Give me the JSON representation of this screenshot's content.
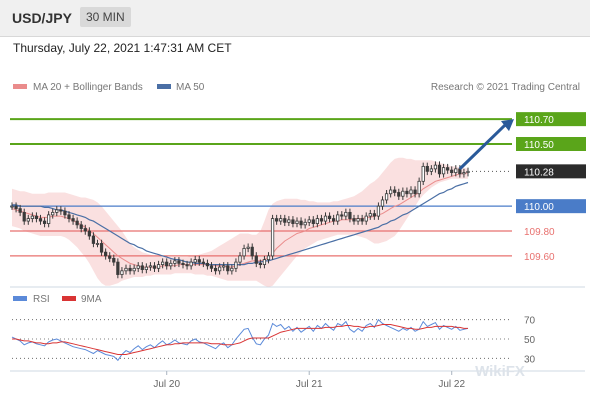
{
  "header": {
    "symbol": "USD/JPY",
    "timeframe": "30 MIN",
    "datetime": "Thursday, July 22, 2021 1:47:31 AM CET"
  },
  "legend": {
    "ma20_bb_label": "MA 20 + Bollinger Bands",
    "ma50_label": "MA 50",
    "copyright": "Research © 2021 Trading Central"
  },
  "rsi_legend": {
    "rsi_label": "RSI",
    "ma9_label": "9MA"
  },
  "watermark": "WikiFX",
  "colors": {
    "resistance": "#5aa51a",
    "support": "#e8716f",
    "pivot": "#4a7cc8",
    "current_tag": "#2b2b2b",
    "arrow": "#2a5a9a",
    "candle": "#3a3a3a",
    "bollinger": "#f6c6c6",
    "ma20": "#ea8c8c",
    "ma50": "#4a6fa5",
    "rsi": "#5b8ad9",
    "rsi_ma": "#d93434"
  },
  "chart_data": [
    {
      "type": "candlestick",
      "instrument": "USD/JPY",
      "timeframe": "30 MIN",
      "ylim": [
        109.39,
        110.87
      ],
      "xlim": [
        0,
        112
      ],
      "x_ticks": [
        {
          "x": 38,
          "label": "Jul 20"
        },
        {
          "x": 73,
          "label": "Jul 21"
        },
        {
          "x": 108,
          "label": "Jul 22"
        }
      ],
      "levels": [
        {
          "value": 110.7,
          "label": "110.70",
          "kind": "resistance"
        },
        {
          "value": 110.5,
          "label": "110.50",
          "kind": "resistance"
        },
        {
          "value": 110.28,
          "label": "110.28",
          "kind": "current"
        },
        {
          "value": 110.0,
          "label": "110.00",
          "kind": "pivot"
        },
        {
          "value": 109.8,
          "label": "109.80",
          "kind": "support"
        },
        {
          "value": 109.6,
          "label": "109.60",
          "kind": "support"
        }
      ],
      "forecast_arrow": {
        "from": [
          110,
          110.3
        ],
        "to": [
          120,
          110.7
        ]
      },
      "close": [
        110.0,
        109.98,
        109.95,
        109.88,
        109.9,
        109.92,
        109.9,
        109.88,
        109.86,
        109.93,
        109.95,
        109.97,
        109.96,
        109.93,
        109.9,
        109.88,
        109.85,
        109.82,
        109.8,
        109.76,
        109.7,
        109.7,
        109.63,
        109.6,
        109.58,
        109.55,
        109.45,
        109.48,
        109.5,
        109.48,
        109.5,
        109.52,
        109.49,
        109.51,
        109.52,
        109.5,
        109.53,
        109.55,
        109.52,
        109.54,
        109.56,
        109.54,
        109.53,
        109.52,
        109.55,
        109.57,
        109.55,
        109.54,
        109.52,
        109.5,
        109.48,
        109.51,
        109.52,
        109.48,
        109.5,
        109.55,
        109.6,
        109.66,
        109.67,
        109.6,
        109.54,
        109.53,
        109.57,
        109.6,
        109.9,
        109.88,
        109.9,
        109.87,
        109.89,
        109.86,
        109.88,
        109.85,
        109.87,
        109.89,
        109.86,
        109.9,
        109.88,
        109.92,
        109.9,
        109.88,
        109.93,
        109.92,
        109.95,
        109.9,
        109.88,
        109.9,
        109.88,
        109.92,
        109.94,
        109.92,
        110.0,
        110.05,
        110.1,
        110.13,
        110.11,
        110.08,
        110.12,
        110.1,
        110.13,
        110.1,
        110.2,
        110.32,
        110.28,
        110.3,
        110.33,
        110.26,
        110.31,
        110.29,
        110.27,
        110.3,
        110.26,
        110.27,
        110.28
      ],
      "ma20": [
        109.98,
        109.97,
        109.96,
        109.95,
        109.94,
        109.93,
        109.92,
        109.91,
        109.91,
        109.91,
        109.92,
        109.92,
        109.92,
        109.91,
        109.9,
        109.88,
        109.87,
        109.85,
        109.83,
        109.8,
        109.78,
        109.75,
        109.72,
        109.69,
        109.66,
        109.63,
        109.6,
        109.58,
        109.56,
        109.54,
        109.53,
        109.52,
        109.51,
        109.51,
        109.51,
        109.51,
        109.51,
        109.52,
        109.52,
        109.52,
        109.52,
        109.53,
        109.53,
        109.53,
        109.53,
        109.53,
        109.53,
        109.53,
        109.53,
        109.53,
        109.52,
        109.52,
        109.52,
        109.51,
        109.51,
        109.52,
        109.53,
        109.54,
        109.55,
        109.56,
        109.56,
        109.56,
        109.57,
        109.59,
        109.62,
        109.66,
        109.69,
        109.72,
        109.74,
        109.76,
        109.78,
        109.79,
        109.8,
        109.82,
        109.83,
        109.84,
        109.85,
        109.86,
        109.87,
        109.88,
        109.88,
        109.89,
        109.89,
        109.89,
        109.9,
        109.9,
        109.9,
        109.91,
        109.91,
        109.92,
        109.93,
        109.94,
        109.96,
        109.98,
        110.0,
        110.01,
        110.03,
        110.05,
        110.07,
        110.09,
        110.11,
        110.14,
        110.16,
        110.18,
        110.2,
        110.21,
        110.22,
        110.23,
        110.24,
        110.25,
        110.26,
        110.26,
        110.27
      ],
      "bollinger_upper": [
        110.14,
        110.13,
        110.12,
        110.12,
        110.11,
        110.1,
        110.1,
        110.1,
        110.1,
        110.11,
        110.11,
        110.11,
        110.11,
        110.11,
        110.1,
        110.09,
        110.08,
        110.07,
        110.07,
        110.06,
        110.05,
        110.03,
        110.0,
        109.96,
        109.92,
        109.88,
        109.84,
        109.8,
        109.75,
        109.7,
        109.67,
        109.65,
        109.63,
        109.62,
        109.61,
        109.6,
        109.6,
        109.59,
        109.59,
        109.59,
        109.59,
        109.59,
        109.59,
        109.59,
        109.6,
        109.6,
        109.61,
        109.62,
        109.63,
        109.64,
        109.66,
        109.68,
        109.7,
        109.72,
        109.74,
        109.76,
        109.78,
        109.78,
        109.78,
        109.77,
        109.77,
        109.8,
        109.88,
        109.97,
        110.02,
        110.04,
        110.05,
        110.06,
        110.06,
        110.06,
        110.06,
        110.05,
        110.05,
        110.04,
        110.04,
        110.03,
        110.03,
        110.03,
        110.03,
        110.04,
        110.04,
        110.05,
        110.06,
        110.07,
        110.08,
        110.1,
        110.12,
        110.15,
        110.18,
        110.2,
        110.23,
        110.27,
        110.31,
        110.35,
        110.38,
        110.39,
        110.39,
        110.38,
        110.38,
        110.37,
        110.37,
        110.37,
        110.37,
        110.37,
        110.36,
        110.35,
        110.34,
        110.33,
        110.32,
        110.32,
        110.31,
        110.31,
        110.3
      ],
      "bollinger_lower": [
        109.84,
        109.83,
        109.82,
        109.8,
        109.79,
        109.78,
        109.77,
        109.76,
        109.76,
        109.76,
        109.76,
        109.76,
        109.76,
        109.75,
        109.73,
        109.7,
        109.67,
        109.63,
        109.59,
        109.54,
        109.48,
        109.42,
        109.38,
        109.36,
        109.36,
        109.37,
        109.38,
        109.4,
        109.41,
        109.42,
        109.43,
        109.43,
        109.43,
        109.44,
        109.44,
        109.45,
        109.45,
        109.45,
        109.45,
        109.45,
        109.46,
        109.46,
        109.46,
        109.46,
        109.46,
        109.45,
        109.45,
        109.45,
        109.44,
        109.44,
        109.43,
        109.42,
        109.41,
        109.4,
        109.4,
        109.4,
        109.4,
        109.4,
        109.4,
        109.4,
        109.4,
        109.38,
        109.36,
        109.35,
        109.36,
        109.4,
        109.44,
        109.48,
        109.52,
        109.56,
        109.6,
        109.63,
        109.66,
        109.68,
        109.7,
        109.72,
        109.73,
        109.74,
        109.75,
        109.76,
        109.77,
        109.77,
        109.77,
        109.77,
        109.77,
        109.76,
        109.75,
        109.74,
        109.72,
        109.7,
        109.7,
        109.71,
        109.72,
        109.74,
        109.76,
        109.8,
        109.85,
        109.9,
        109.95,
        110.0,
        110.05,
        110.09,
        110.12,
        110.15,
        110.17,
        110.19,
        110.2,
        110.21,
        110.22,
        110.22,
        110.22,
        110.22,
        110.22
      ],
      "ma50": [
        110.01,
        110.01,
        110.0,
        110.0,
        110.0,
        110.0,
        110.0,
        110.0,
        109.99,
        109.99,
        109.98,
        109.97,
        109.97,
        109.96,
        109.95,
        109.94,
        109.93,
        109.92,
        109.91,
        109.89,
        109.88,
        109.86,
        109.84,
        109.82,
        109.8,
        109.78,
        109.76,
        109.74,
        109.72,
        109.7,
        109.69,
        109.67,
        109.66,
        109.64,
        109.63,
        109.62,
        109.61,
        109.6,
        109.59,
        109.58,
        109.57,
        109.57,
        109.56,
        109.55,
        109.55,
        109.54,
        109.54,
        109.54,
        109.53,
        109.53,
        109.53,
        109.53,
        109.53,
        109.53,
        109.53,
        109.53,
        109.53,
        109.53,
        109.54,
        109.54,
        109.55,
        109.55,
        109.56,
        109.56,
        109.57,
        109.58,
        109.59,
        109.6,
        109.61,
        109.62,
        109.63,
        109.64,
        109.65,
        109.66,
        109.67,
        109.68,
        109.69,
        109.7,
        109.71,
        109.72,
        109.73,
        109.74,
        109.75,
        109.76,
        109.77,
        109.78,
        109.79,
        109.8,
        109.81,
        109.82,
        109.83,
        109.85,
        109.86,
        109.88,
        109.89,
        109.91,
        109.93,
        109.94,
        109.96,
        109.98,
        110.0,
        110.02,
        110.04,
        110.06,
        110.08,
        110.1,
        110.11,
        110.13,
        110.14,
        110.16,
        110.17,
        110.18,
        110.19
      ]
    },
    {
      "type": "line",
      "name": "RSI panel",
      "ylim": [
        20,
        80
      ],
      "y_ticks": [
        70,
        50,
        30
      ],
      "series": [
        {
          "name": "RSI",
          "values": [
            52,
            50,
            48,
            44,
            46,
            47,
            45,
            44,
            43,
            47,
            49,
            50,
            48,
            46,
            44,
            42,
            41,
            40,
            39,
            37,
            35,
            38,
            36,
            34,
            33,
            32,
            28,
            34,
            38,
            36,
            40,
            43,
            39,
            42,
            44,
            41,
            45,
            48,
            44,
            46,
            49,
            46,
            45,
            44,
            48,
            50,
            47,
            46,
            44,
            42,
            40,
            44,
            46,
            41,
            44,
            50,
            55,
            60,
            61,
            52,
            45,
            44,
            50,
            54,
            66,
            63,
            65,
            60,
            63,
            58,
            62,
            57,
            60,
            63,
            58,
            64,
            61,
            66,
            62,
            59,
            66,
            64,
            68,
            60,
            57,
            61,
            58,
            64,
            66,
            62,
            70,
            66,
            64,
            62,
            60,
            58,
            61,
            59,
            62,
            58,
            60,
            68,
            63,
            65,
            67,
            60,
            64,
            62,
            60,
            63,
            59,
            60,
            61
          ]
        },
        {
          "name": "9MA",
          "values": [
            50,
            50,
            49,
            48,
            48,
            47,
            46,
            46,
            45,
            45,
            46,
            46,
            47,
            47,
            46,
            45,
            44,
            43,
            42,
            41,
            40,
            39,
            38,
            37,
            36,
            35,
            34,
            34,
            34,
            35,
            36,
            37,
            38,
            39,
            40,
            41,
            42,
            43,
            44,
            44,
            45,
            45,
            46,
            46,
            46,
            46,
            46,
            46,
            46,
            45,
            45,
            45,
            44,
            44,
            44,
            45,
            46,
            48,
            50,
            51,
            51,
            51,
            51,
            51,
            53,
            55,
            57,
            58,
            59,
            60,
            61,
            61,
            61,
            61,
            61,
            61,
            61,
            62,
            62,
            62,
            63,
            63,
            64,
            64,
            63,
            63,
            62,
            62,
            63,
            63,
            64,
            65,
            65,
            65,
            64,
            63,
            62,
            61,
            61,
            60,
            60,
            61,
            62,
            62,
            63,
            63,
            63,
            63,
            63,
            62,
            62,
            61,
            61
          ]
        }
      ]
    }
  ]
}
